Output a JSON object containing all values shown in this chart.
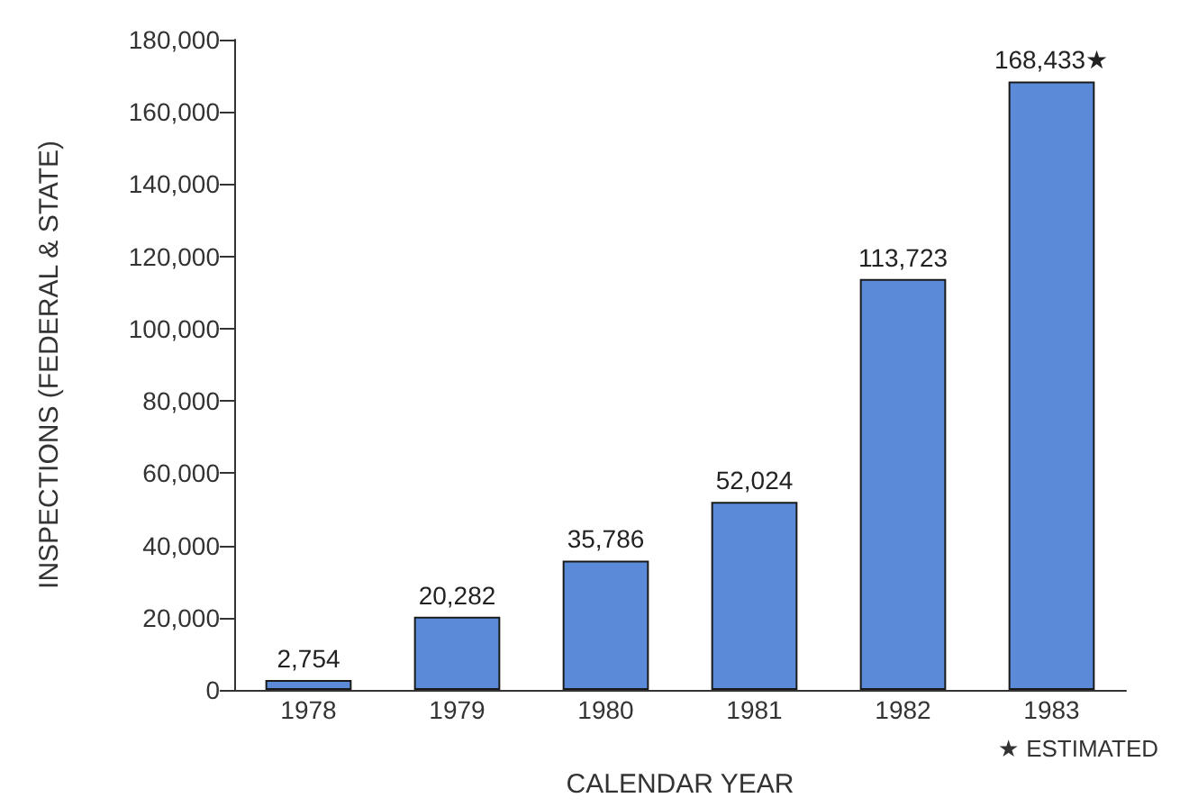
{
  "chart_data": {
    "type": "bar",
    "xlabel": "CALENDAR YEAR",
    "ylabel": "INSPECTIONS (FEDERAL & STATE)",
    "categories": [
      "1978",
      "1979",
      "1980",
      "1981",
      "1982",
      "1983"
    ],
    "values": [
      2754,
      20282,
      35786,
      52024,
      113723,
      168433
    ],
    "color": "#5b8bd8",
    "value_labels": [
      "2,754",
      "20,282",
      "35,786",
      "52,024",
      "113,723",
      "168,433★"
    ],
    "ylim": [
      0,
      180000
    ],
    "yticks": [
      {
        "value": 0,
        "label": "0"
      },
      {
        "value": 20000,
        "label": "20,000"
      },
      {
        "value": 40000,
        "label": "40,000"
      },
      {
        "value": 60000,
        "label": "60,000"
      },
      {
        "value": 80000,
        "label": "80,000"
      },
      {
        "value": 100000,
        "label": "100,000"
      },
      {
        "value": 120000,
        "label": "120,000"
      },
      {
        "value": 140000,
        "label": "140,000"
      },
      {
        "value": 160000,
        "label": "160,000"
      },
      {
        "value": 180000,
        "label": "180,000"
      }
    ],
    "grid": false,
    "annotations": [
      "★ ESTIMATED"
    ]
  }
}
